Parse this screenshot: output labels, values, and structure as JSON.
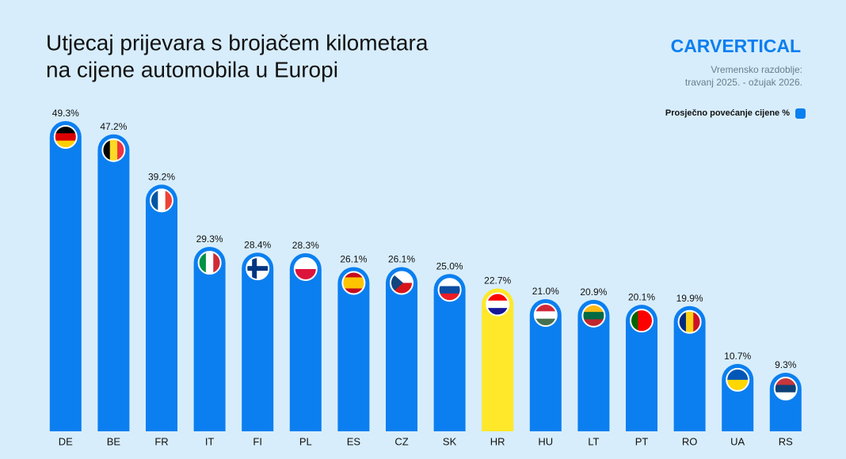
{
  "chart_data": {
    "type": "bar",
    "title": [
      "Utjecaj prijevara s brojačem kilometara",
      "na cijene automobila u Europi"
    ],
    "brand": "CARVERTICAL",
    "subtitle": [
      "Vremensko razdoblje:",
      "travanj 2025. - ožujak 2026."
    ],
    "legend": {
      "position": "top-right"
    },
    "categories": [
      "DE",
      "BE",
      "FR",
      "IT",
      "FI",
      "PL",
      "ES",
      "CZ",
      "SK",
      "HR",
      "HU",
      "LT",
      "PT",
      "RO",
      "UA",
      "RS"
    ],
    "series": [
      {
        "name": "Prosječno povećanje cijene %",
        "color": "#0b7ff0",
        "values": [
          49.3,
          47.2,
          39.2,
          29.3,
          28.4,
          28.3,
          26.1,
          26.1,
          25.0,
          22.7,
          21.0,
          20.9,
          20.1,
          19.9,
          10.7,
          9.3
        ],
        "value_labels": [
          "49.3%",
          "47.2%",
          "39.2%",
          "29.3%",
          "28.4%",
          "28.3%",
          "26.1%",
          "26.1%",
          "25.0%",
          "22.7%",
          "21.0%",
          "20.9%",
          "20.1%",
          "19.9%",
          "10.7%",
          "9.3%"
        ],
        "colors": [
          "#0b7ff0",
          "#0b7ff0",
          "#0b7ff0",
          "#0b7ff0",
          "#0b7ff0",
          "#0b7ff0",
          "#0b7ff0",
          "#0b7ff0",
          "#0b7ff0",
          "#ffe82a",
          "#0b7ff0",
          "#0b7ff0",
          "#0b7ff0",
          "#0b7ff0",
          "#0b7ff0",
          "#0b7ff0"
        ]
      }
    ]
  }
}
